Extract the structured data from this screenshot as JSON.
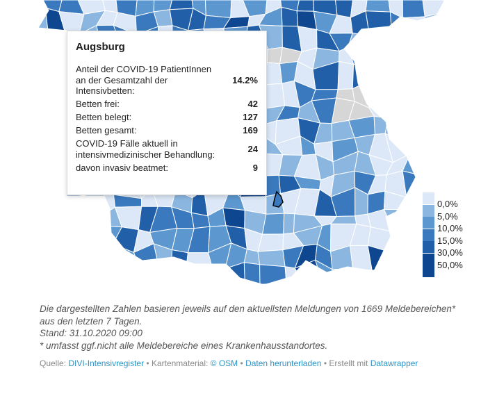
{
  "tooltip": {
    "title": "Augsburg",
    "rows": [
      {
        "label": "Anteil der COVID-19 PatientInnen an der Gesamtzahl der Intensivbetten:",
        "value": "14.2%"
      },
      {
        "label": "Betten frei:",
        "value": "42"
      },
      {
        "label": "Betten belegt:",
        "value": "127"
      },
      {
        "label": "Betten gesamt:",
        "value": "169"
      },
      {
        "label": "COVID-19 Fälle aktuell in intensivmedizinischer Behandlung:",
        "value": "24"
      },
      {
        "label": "davon invasiv beatmet:",
        "value": "9"
      }
    ]
  },
  "legend": {
    "labels": [
      "0,0%",
      "5,0%",
      "10,0%",
      "15,0%",
      "30,0%",
      "50,0%"
    ],
    "colors": [
      "#dce8f7",
      "#8ab6e0",
      "#5c97cf",
      "#3a79bd",
      "#2160a8",
      "#0e4690"
    ]
  },
  "map_colors": {
    "lowest": "#dce8f7",
    "light": "#8ab6e0",
    "medium": "#5c97cf",
    "mid_dark": "#3a79bd",
    "dark": "#2160a8",
    "darkest": "#0e4690",
    "no_data": "#d6d6d6",
    "border": "#ffffff"
  },
  "notes": {
    "line1": "Die dargestellten Zahlen basieren jeweils auf den aktuellsten Meldungen von 1669 Meldebereichen* aus den letzten 7 Tagen.",
    "line2": "Stand: 31.10.2020 09:00",
    "line3": "* umfasst ggf.nicht alle Meldebereiche eines Krankenhausstandortes."
  },
  "credits": {
    "source_label": "Quelle:",
    "source_link": "DIVI-Intensivregister",
    "sep1": " • ",
    "map_label": "Kartenmaterial:",
    "map_link": "© OSM",
    "sep2": " • ",
    "download_link": "Daten herunterladen",
    "sep3": " • ",
    "made_with_label": "Erstellt mit",
    "made_with_link": "Datawrapper"
  }
}
